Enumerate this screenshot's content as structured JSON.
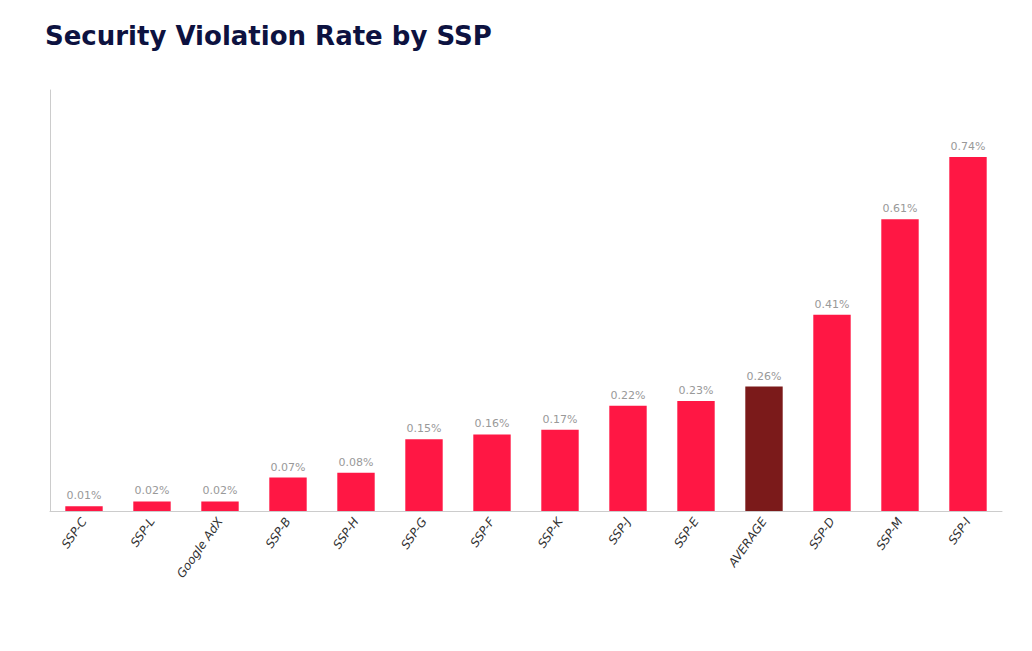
{
  "chart_data": {
    "type": "bar",
    "title": "Security Violation Rate by SSP",
    "categories": [
      "SSP-C",
      "SSP-L",
      "Google AdX",
      "SSP-B",
      "SSP-H",
      "SSP-G",
      "SSP-F",
      "SSP-K",
      "SSP-J",
      "SSP-E",
      "AVERAGE",
      "SSP-D",
      "SSP-M",
      "SSP-I"
    ],
    "values": [
      0.01,
      0.02,
      0.02,
      0.07,
      0.08,
      0.15,
      0.16,
      0.17,
      0.22,
      0.23,
      0.26,
      0.41,
      0.61,
      0.74
    ],
    "value_labels": [
      "0.01%",
      "0.02%",
      "0.02%",
      "0.07%",
      "0.08%",
      "0.15%",
      "0.16%",
      "0.17%",
      "0.22%",
      "0.23%",
      "0.26%",
      "0.41%",
      "0.61%",
      "0.74%"
    ],
    "colors": [
      "#FF1744",
      "#FF1744",
      "#FF1744",
      "#FF1744",
      "#FF1744",
      "#FF1744",
      "#FF1744",
      "#FF1744",
      "#FF1744",
      "#FF1744",
      "#7B1A1A",
      "#FF1744",
      "#FF1744",
      "#FF1744"
    ],
    "ylim": [
      0,
      0.88
    ],
    "grid": false,
    "data_labels": true,
    "tick_labels": "x"
  }
}
